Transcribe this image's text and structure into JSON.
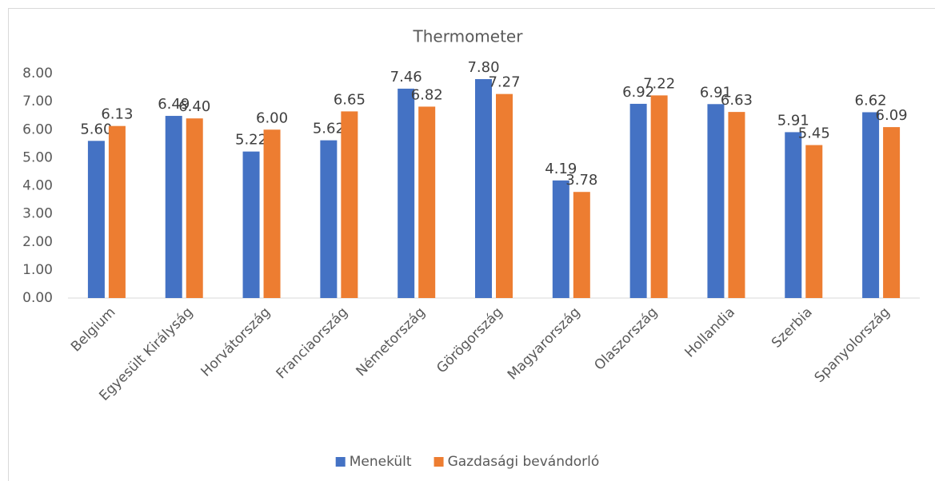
{
  "chart_data": {
    "type": "bar",
    "title": "Thermometer",
    "categories": [
      "Belgium",
      "Egyesült Királyság",
      "Horvátország",
      "Franciaország",
      "Németország",
      "Görögország",
      "Magyarország",
      "Olaszország",
      "Hollandia",
      "Szerbia",
      "Spanyolország"
    ],
    "series": [
      {
        "name": "Menekült",
        "color": "#4472c4",
        "values": [
          5.6,
          6.49,
          5.22,
          5.62,
          7.46,
          7.8,
          4.19,
          6.92,
          6.91,
          5.91,
          6.62
        ],
        "value_labels": [
          "5.60",
          "6.49",
          "5.22",
          "5.62",
          "7.46",
          "7.80",
          "4.19",
          "6.92",
          "6.91",
          "5.91",
          "6.62"
        ]
      },
      {
        "name": "Gazdasági bevándorló",
        "color": "#ed7d31",
        "values": [
          6.13,
          6.4,
          6.0,
          6.65,
          6.82,
          7.27,
          3.78,
          7.22,
          6.63,
          5.45,
          6.09
        ],
        "value_labels": [
          "6.13",
          "6.40",
          "6.00",
          "6.65",
          "6.82",
          "7.27",
          "3.78",
          "7.22",
          "6.63",
          "5.45",
          "6.09"
        ]
      }
    ],
    "ylim": [
      0,
      8
    ],
    "yticks": [
      {
        "value": 0,
        "label": "0.00"
      },
      {
        "value": 1,
        "label": "1.00"
      },
      {
        "value": 2,
        "label": "2.00"
      },
      {
        "value": 3,
        "label": "3.00"
      },
      {
        "value": 4,
        "label": "4.00"
      },
      {
        "value": 5,
        "label": "5.00"
      },
      {
        "value": 6,
        "label": "6.00"
      },
      {
        "value": 7,
        "label": "7.00"
      },
      {
        "value": 8,
        "label": "8.00"
      }
    ],
    "legend": "bottom"
  }
}
